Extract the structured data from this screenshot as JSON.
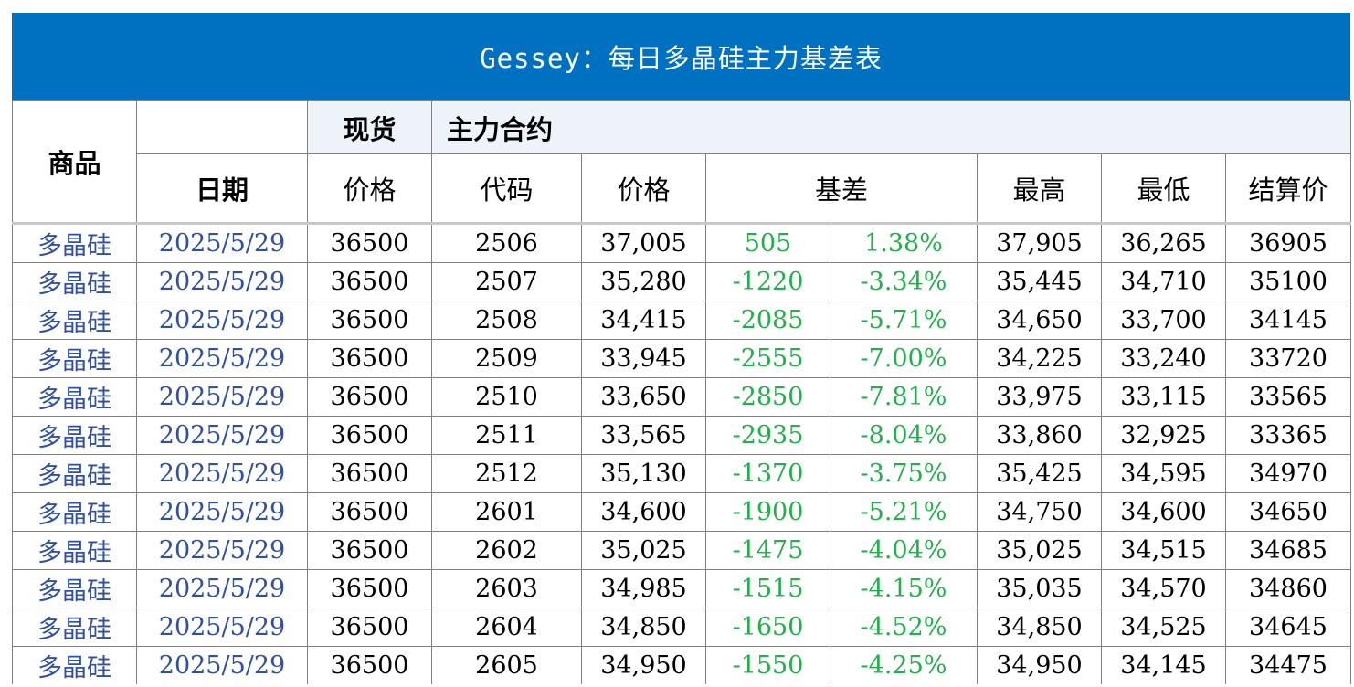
{
  "title": "Gessey：每日多晶硅主力基差表",
  "header": {
    "commodity": "商品",
    "spot": "现货",
    "main_contract": "主力合约",
    "date": "日期",
    "spot_price": "价格",
    "code": "代码",
    "price": "价格",
    "basis": "基差",
    "high": "最高",
    "low": "最低",
    "settle": "结算价"
  },
  "colors": {
    "title_bg": "#0070c0",
    "header_bg": "#eef3fa",
    "name_text": "#2f4fa8",
    "basis_text": "#22b04b"
  },
  "rows": [
    {
      "name": "多晶硅",
      "date": "2025/5/29",
      "spot": "36500",
      "code": "2506",
      "price": "37,005",
      "basis": "505",
      "basis_pct": "1.38%",
      "high": "37,905",
      "low": "36,265",
      "settle": "36905"
    },
    {
      "name": "多晶硅",
      "date": "2025/5/29",
      "spot": "36500",
      "code": "2507",
      "price": "35,280",
      "basis": "-1220",
      "basis_pct": "-3.34%",
      "high": "35,445",
      "low": "34,710",
      "settle": "35100"
    },
    {
      "name": "多晶硅",
      "date": "2025/5/29",
      "spot": "36500",
      "code": "2508",
      "price": "34,415",
      "basis": "-2085",
      "basis_pct": "-5.71%",
      "high": "34,650",
      "low": "33,700",
      "settle": "34145"
    },
    {
      "name": "多晶硅",
      "date": "2025/5/29",
      "spot": "36500",
      "code": "2509",
      "price": "33,945",
      "basis": "-2555",
      "basis_pct": "-7.00%",
      "high": "34,225",
      "low": "33,240",
      "settle": "33720"
    },
    {
      "name": "多晶硅",
      "date": "2025/5/29",
      "spot": "36500",
      "code": "2510",
      "price": "33,650",
      "basis": "-2850",
      "basis_pct": "-7.81%",
      "high": "33,975",
      "low": "33,115",
      "settle": "33565"
    },
    {
      "name": "多晶硅",
      "date": "2025/5/29",
      "spot": "36500",
      "code": "2511",
      "price": "33,565",
      "basis": "-2935",
      "basis_pct": "-8.04%",
      "high": "33,860",
      "low": "32,925",
      "settle": "33365"
    },
    {
      "name": "多晶硅",
      "date": "2025/5/29",
      "spot": "36500",
      "code": "2512",
      "price": "35,130",
      "basis": "-1370",
      "basis_pct": "-3.75%",
      "high": "35,425",
      "low": "34,595",
      "settle": "34970"
    },
    {
      "name": "多晶硅",
      "date": "2025/5/29",
      "spot": "36500",
      "code": "2601",
      "price": "34,600",
      "basis": "-1900",
      "basis_pct": "-5.21%",
      "high": "34,750",
      "low": "34,600",
      "settle": "34650"
    },
    {
      "name": "多晶硅",
      "date": "2025/5/29",
      "spot": "36500",
      "code": "2602",
      "price": "35,025",
      "basis": "-1475",
      "basis_pct": "-4.04%",
      "high": "35,025",
      "low": "34,515",
      "settle": "34685"
    },
    {
      "name": "多晶硅",
      "date": "2025/5/29",
      "spot": "36500",
      "code": "2603",
      "price": "34,985",
      "basis": "-1515",
      "basis_pct": "-4.15%",
      "high": "35,035",
      "low": "34,570",
      "settle": "34860"
    },
    {
      "name": "多晶硅",
      "date": "2025/5/29",
      "spot": "36500",
      "code": "2604",
      "price": "34,850",
      "basis": "-1650",
      "basis_pct": "-4.52%",
      "high": "34,850",
      "low": "34,525",
      "settle": "34645"
    },
    {
      "name": "多晶硅",
      "date": "2025/5/29",
      "spot": "36500",
      "code": "2605",
      "price": "34,950",
      "basis": "-1550",
      "basis_pct": "-4.25%",
      "high": "34,950",
      "low": "34,145",
      "settle": "34475"
    }
  ]
}
